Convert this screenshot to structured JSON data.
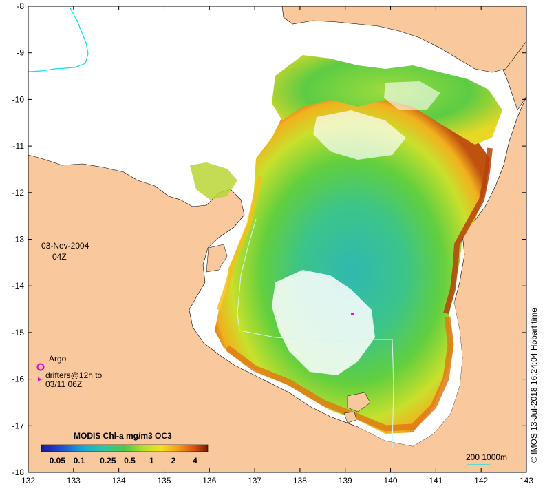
{
  "map": {
    "date_label": "03-Nov-2004",
    "time_label": "04Z",
    "credit": "© IMOS 13-Jul-2018 16:24:04 Hobart time",
    "x_ticks": [
      "132",
      "133",
      "134",
      "135",
      "136",
      "137",
      "138",
      "139",
      "140",
      "141",
      "142",
      "143"
    ],
    "y_ticks": [
      "-8",
      "-9",
      "-10",
      "-11",
      "-12",
      "-13",
      "-14",
      "-15",
      "-16",
      "-17",
      "-18"
    ],
    "lon_range": [
      132,
      143
    ],
    "lat_range": [
      -18,
      -8
    ]
  },
  "legend": {
    "argo_label": "Argo",
    "drifters_line1": "drifters@12h to",
    "drifters_line2": "03/11 06Z"
  },
  "colorbar": {
    "title": "MODIS Chl-a mg/m3 OC3",
    "ticks": [
      "0.05",
      "0.1",
      "0.25",
      "0.5",
      "1",
      "2",
      "4"
    ]
  },
  "depth_legend": {
    "label": "200  1000m"
  },
  "colors": {
    "land": "#f9c89c",
    "cyan_line": "#00e5ee",
    "argo": "#e000e0"
  }
}
